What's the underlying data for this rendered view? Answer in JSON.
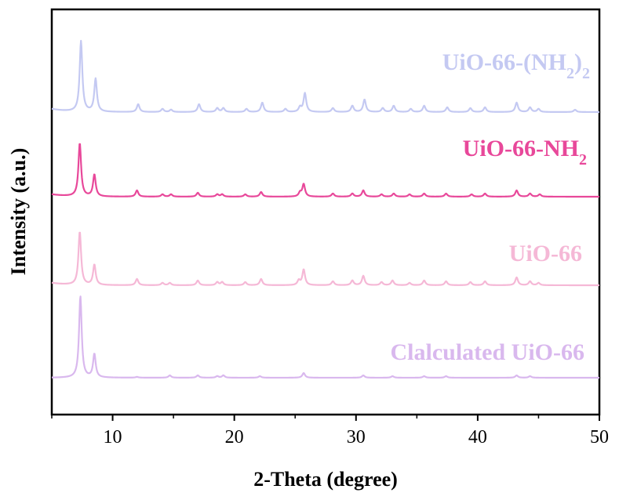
{
  "chart_data": {
    "type": "line",
    "title": "",
    "xlabel": "2-Theta (degree)",
    "ylabel": "Intensity (a.u.)",
    "xlim": [
      5,
      50
    ],
    "xticks": [
      10,
      20,
      30,
      40,
      50
    ],
    "yticks_shown": false,
    "grid": false,
    "legend": "inline labels to the right, above each trace",
    "series": [
      {
        "name": "UiO-66-(NH2)2",
        "label_main": "UiO-66-(NH",
        "label_sub": "2",
        "label_tail": ")",
        "label_tail_sub": "2",
        "color": "#c4c9f2",
        "peaks": [
          {
            "x": 7.4,
            "h": 90
          },
          {
            "x": 8.6,
            "h": 42
          },
          {
            "x": 12.1,
            "h": 10
          },
          {
            "x": 14.1,
            "h": 4
          },
          {
            "x": 14.8,
            "h": 3
          },
          {
            "x": 17.1,
            "h": 10
          },
          {
            "x": 18.6,
            "h": 5
          },
          {
            "x": 19.1,
            "h": 5
          },
          {
            "x": 21.0,
            "h": 4
          },
          {
            "x": 22.3,
            "h": 12
          },
          {
            "x": 24.2,
            "h": 4
          },
          {
            "x": 25.4,
            "h": 6
          },
          {
            "x": 25.8,
            "h": 24
          },
          {
            "x": 28.1,
            "h": 5
          },
          {
            "x": 29.7,
            "h": 8
          },
          {
            "x": 30.7,
            "h": 16
          },
          {
            "x": 32.2,
            "h": 5
          },
          {
            "x": 33.1,
            "h": 8
          },
          {
            "x": 34.5,
            "h": 4
          },
          {
            "x": 35.6,
            "h": 8
          },
          {
            "x": 37.5,
            "h": 6
          },
          {
            "x": 39.4,
            "h": 5
          },
          {
            "x": 40.6,
            "h": 6
          },
          {
            "x": 43.2,
            "h": 12
          },
          {
            "x": 44.3,
            "h": 6
          },
          {
            "x": 45.0,
            "h": 4
          },
          {
            "x": 48.0,
            "h": 3
          }
        ]
      },
      {
        "name": "UiO-66-NH2",
        "label_main": "UiO-66-NH",
        "label_sub": "2",
        "label_tail": "",
        "label_tail_sub": "",
        "color": "#e8489a",
        "peaks": [
          {
            "x": 7.3,
            "h": 68
          },
          {
            "x": 8.5,
            "h": 28
          },
          {
            "x": 12.0,
            "h": 8
          },
          {
            "x": 14.1,
            "h": 3
          },
          {
            "x": 14.8,
            "h": 3
          },
          {
            "x": 17.0,
            "h": 5
          },
          {
            "x": 18.6,
            "h": 3
          },
          {
            "x": 19.0,
            "h": 3
          },
          {
            "x": 20.9,
            "h": 3
          },
          {
            "x": 22.2,
            "h": 6
          },
          {
            "x": 25.4,
            "h": 5
          },
          {
            "x": 25.7,
            "h": 16
          },
          {
            "x": 28.1,
            "h": 4
          },
          {
            "x": 29.7,
            "h": 4
          },
          {
            "x": 30.6,
            "h": 8
          },
          {
            "x": 32.1,
            "h": 3
          },
          {
            "x": 33.1,
            "h": 4
          },
          {
            "x": 34.4,
            "h": 3
          },
          {
            "x": 35.6,
            "h": 4
          },
          {
            "x": 37.4,
            "h": 4
          },
          {
            "x": 39.5,
            "h": 3
          },
          {
            "x": 40.6,
            "h": 4
          },
          {
            "x": 43.2,
            "h": 8
          },
          {
            "x": 44.3,
            "h": 4
          },
          {
            "x": 45.1,
            "h": 3
          }
        ]
      },
      {
        "name": "UiO-66",
        "label_main": "UiO-66",
        "label_sub": "",
        "label_tail": "",
        "label_tail_sub": "",
        "color": "#f5b8d6",
        "peaks": [
          {
            "x": 7.3,
            "h": 68
          },
          {
            "x": 8.5,
            "h": 26
          },
          {
            "x": 12.0,
            "h": 8
          },
          {
            "x": 14.1,
            "h": 3
          },
          {
            "x": 14.7,
            "h": 3
          },
          {
            "x": 17.0,
            "h": 6
          },
          {
            "x": 18.6,
            "h": 4
          },
          {
            "x": 19.0,
            "h": 4
          },
          {
            "x": 20.9,
            "h": 4
          },
          {
            "x": 22.2,
            "h": 8
          },
          {
            "x": 25.3,
            "h": 6
          },
          {
            "x": 25.7,
            "h": 20
          },
          {
            "x": 28.1,
            "h": 5
          },
          {
            "x": 29.7,
            "h": 6
          },
          {
            "x": 30.6,
            "h": 12
          },
          {
            "x": 32.1,
            "h": 4
          },
          {
            "x": 33.0,
            "h": 6
          },
          {
            "x": 34.4,
            "h": 3
          },
          {
            "x": 35.6,
            "h": 6
          },
          {
            "x": 37.4,
            "h": 5
          },
          {
            "x": 39.4,
            "h": 4
          },
          {
            "x": 40.6,
            "h": 5
          },
          {
            "x": 43.2,
            "h": 10
          },
          {
            "x": 44.3,
            "h": 5
          },
          {
            "x": 45.0,
            "h": 3
          }
        ]
      },
      {
        "name": "Clalculated UiO-66",
        "label_main": "Clalculated UiO-66",
        "label_sub": "",
        "label_tail": "",
        "label_tail_sub": "",
        "color": "#d9b8ee",
        "peaks": [
          {
            "x": 7.35,
            "h": 104
          },
          {
            "x": 8.5,
            "h": 30
          },
          {
            "x": 12.0,
            "h": 1
          },
          {
            "x": 14.7,
            "h": 3
          },
          {
            "x": 17.0,
            "h": 3
          },
          {
            "x": 18.6,
            "h": 2
          },
          {
            "x": 19.1,
            "h": 3
          },
          {
            "x": 22.1,
            "h": 2
          },
          {
            "x": 25.7,
            "h": 6
          },
          {
            "x": 30.6,
            "h": 3
          },
          {
            "x": 33.0,
            "h": 2
          },
          {
            "x": 35.6,
            "h": 2
          },
          {
            "x": 37.4,
            "h": 2
          },
          {
            "x": 43.2,
            "h": 3
          },
          {
            "x": 44.3,
            "h": 2
          }
        ]
      }
    ]
  }
}
